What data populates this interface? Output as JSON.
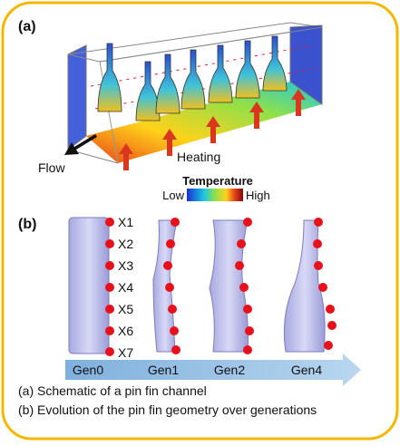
{
  "panel_a": {
    "label": "(a)",
    "flow": "Flow",
    "heating": "Heating",
    "colorbar": {
      "title": "Temperature",
      "low": "Low",
      "high": "High"
    }
  },
  "panel_b": {
    "label": "(b)",
    "points": [
      "X1",
      "X2",
      "X3",
      "X4",
      "X5",
      "X6",
      "X7"
    ],
    "generations": [
      "Gen0",
      "Gen1",
      "Gen2",
      "Gen4"
    ]
  },
  "caption": [
    "(a) Schematic of a pin fin channel",
    "(b) Evolution of the pin fin geometry over generations"
  ]
}
